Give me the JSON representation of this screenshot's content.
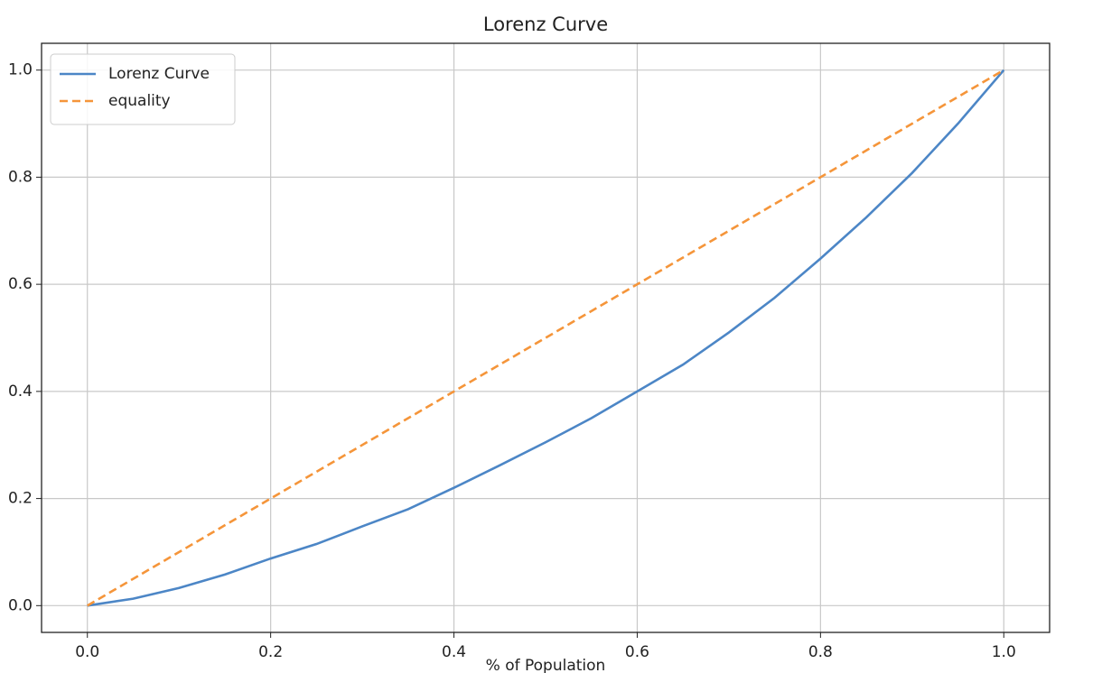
{
  "chart_data": {
    "type": "line",
    "title": "Lorenz Curve",
    "xlabel": "% of Population",
    "series": [
      {
        "name": "Lorenz Curve",
        "color": "#4c86c6",
        "linestyle": "solid",
        "x": [
          0,
          0.05,
          0.1,
          0.15,
          0.2,
          0.25,
          0.3,
          0.35,
          0.4,
          0.45,
          0.5,
          0.55,
          0.6,
          0.65,
          0.7,
          0.75,
          0.8,
          0.85,
          0.9,
          0.95,
          1
        ],
        "values": [
          0,
          0.013,
          0.033,
          0.058,
          0.088,
          0.115,
          0.148,
          0.18,
          0.22,
          0.262,
          0.305,
          0.35,
          0.4,
          0.45,
          0.51,
          0.575,
          0.648,
          0.725,
          0.808,
          0.9,
          1
        ]
      },
      {
        "name": "equality",
        "color": "#f5953a",
        "linestyle": "dashed",
        "x": [
          0,
          1
        ],
        "values": [
          0,
          1
        ]
      }
    ],
    "xlim": [
      -0.05,
      1.05
    ],
    "ylim": [
      -0.05,
      1.05
    ],
    "xticks": [
      {
        "value": 0,
        "label": "0.0"
      },
      0.2,
      0.4,
      0.6,
      0.8,
      {
        "value": 1,
        "label": "1.0"
      }
    ],
    "yticks": [
      {
        "value": 0,
        "label": "0.0"
      },
      0.2,
      0.4,
      0.6,
      0.8,
      {
        "value": 1,
        "label": "1.0"
      }
    ],
    "grid": true,
    "legend": "upper left"
  }
}
